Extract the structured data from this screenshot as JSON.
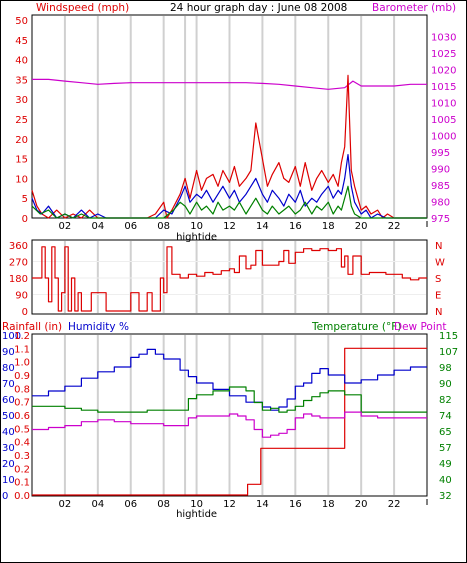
{
  "title": "24 hour graph day : June 08 2008",
  "colors": {
    "red": "#dd0000",
    "blue": "#0000cc",
    "green": "#008000",
    "magenta": "#cc00cc",
    "grid": "#d0d0d0",
    "frame": "#000000"
  },
  "chart_data": [
    {
      "type": "line",
      "panel": "wind-barometer",
      "left_axis_label": "Windspeed (mph)",
      "right_axis_label": "Barometer (mb)",
      "ylim": [
        0,
        50
      ],
      "left_ticks": [
        "0",
        "5",
        "10",
        "15",
        "20",
        "25",
        "30",
        "35",
        "40",
        "45",
        "50"
      ],
      "y2lim": [
        975,
        1035
      ],
      "right_ticks": [
        "975",
        "980",
        "985",
        "990",
        "995",
        "1000",
        "1005",
        "1010",
        "1015",
        "1020",
        "1025",
        "1030"
      ],
      "xlim": [
        0,
        24
      ],
      "x_ticks": [
        "02",
        "04",
        "06",
        "08",
        "10",
        "12",
        "14",
        "16",
        "18",
        "20",
        "22"
      ],
      "marker_label": "hightide",
      "marker_hour": 9.3,
      "grid": true,
      "series": [
        {
          "axis": "right",
          "color": "magenta",
          "x": [
            0,
            1,
            2,
            3,
            4,
            5,
            6,
            7,
            8,
            9,
            10,
            11,
            12,
            13,
            14,
            15,
            16,
            17,
            18,
            19,
            19.5,
            20,
            21,
            22,
            23,
            24
          ],
          "values": [
            1017,
            1017,
            1016.5,
            1016,
            1015.5,
            1015.8,
            1016,
            1016,
            1016,
            1016,
            1016,
            1016,
            1016,
            1016,
            1015.8,
            1015.5,
            1015,
            1014.5,
            1014,
            1014.5,
            1016.5,
            1015,
            1015,
            1015,
            1015.5,
            1015.5
          ]
        },
        {
          "axis": "left",
          "color": "red",
          "x": [
            0,
            0.3,
            0.6,
            1,
            1.5,
            2,
            2.5,
            3,
            3.5,
            4,
            4.5,
            5,
            5.5,
            6,
            6.5,
            7,
            7.5,
            8,
            8.2,
            8.5,
            9,
            9.3,
            9.6,
            10,
            10.3,
            10.6,
            11,
            11.3,
            11.6,
            12,
            12.3,
            12.6,
            13,
            13.3,
            13.6,
            14,
            14.3,
            14.6,
            15,
            15.3,
            15.6,
            16,
            16.3,
            16.6,
            17,
            17.3,
            17.6,
            18,
            18.3,
            18.6,
            18.8,
            19,
            19.2,
            19.4,
            19.6,
            20,
            20.3,
            20.6,
            21,
            21.3,
            21.6,
            22,
            22.5,
            23,
            23.5,
            24
          ],
          "values": [
            7,
            3,
            1,
            0,
            2,
            0,
            1,
            0,
            2,
            0,
            0,
            0,
            0,
            0,
            0,
            0,
            1,
            4,
            0,
            2,
            6,
            10,
            5,
            12,
            7,
            10,
            11,
            8,
            12,
            9,
            13,
            8,
            10,
            12,
            24,
            15,
            8,
            11,
            14,
            10,
            9,
            13,
            8,
            14,
            7,
            10,
            12,
            9,
            11,
            8,
            14,
            18,
            36,
            12,
            8,
            2,
            3,
            1,
            2,
            0,
            1,
            0,
            0,
            0,
            0,
            0
          ]
        },
        {
          "axis": "left",
          "color": "blue",
          "x": [
            0,
            0.3,
            0.6,
            1,
            1.5,
            2,
            2.5,
            3,
            3.5,
            4,
            4.5,
            5,
            5.5,
            6,
            6.5,
            7,
            7.5,
            8,
            8.5,
            9,
            9.3,
            9.6,
            10,
            10.3,
            10.6,
            11,
            11.3,
            11.6,
            12,
            12.3,
            12.6,
            13,
            13.3,
            13.6,
            14,
            14.3,
            14.6,
            15,
            15.3,
            15.6,
            16,
            16.3,
            16.6,
            17,
            17.3,
            17.6,
            18,
            18.3,
            18.6,
            18.8,
            19,
            19.2,
            19.4,
            19.6,
            20,
            20.3,
            20.6,
            21,
            21.5,
            22,
            23,
            24
          ],
          "values": [
            5,
            2,
            1,
            3,
            0,
            1,
            0,
            2,
            0,
            1,
            0,
            0,
            0,
            0,
            0,
            0,
            0,
            2,
            1,
            5,
            8,
            4,
            6,
            5,
            7,
            4,
            6,
            8,
            5,
            7,
            4,
            6,
            8,
            10,
            6,
            4,
            7,
            5,
            3,
            6,
            4,
            7,
            3,
            5,
            4,
            6,
            8,
            5,
            7,
            6,
            10,
            16,
            8,
            4,
            1,
            2,
            0,
            1,
            0,
            0,
            0,
            0
          ]
        },
        {
          "axis": "left",
          "color": "green",
          "x": [
            0,
            0.5,
            1,
            1.5,
            2,
            2.5,
            3,
            3.5,
            4,
            5,
            6,
            7,
            8,
            8.3,
            8.6,
            9,
            9.3,
            9.6,
            10,
            10.3,
            10.6,
            11,
            11.3,
            11.6,
            12,
            12.3,
            12.6,
            13,
            13.3,
            13.6,
            14,
            14.3,
            14.6,
            15,
            15.3,
            15.6,
            16,
            16.3,
            16.6,
            17,
            17.3,
            17.6,
            18,
            18.3,
            18.6,
            18.8,
            19,
            19.2,
            19.4,
            19.6,
            20,
            20.5,
            21,
            22,
            23,
            24
          ],
          "values": [
            3,
            1,
            2,
            0,
            1,
            0,
            1,
            0,
            0,
            0,
            0,
            0,
            0,
            1,
            2,
            4,
            3,
            1,
            4,
            2,
            3,
            1,
            4,
            2,
            3,
            2,
            4,
            1,
            3,
            5,
            2,
            1,
            3,
            1,
            2,
            3,
            1,
            2,
            4,
            1,
            3,
            2,
            4,
            1,
            3,
            2,
            5,
            8,
            3,
            1,
            0,
            0,
            0,
            0,
            0,
            0
          ]
        }
      ]
    },
    {
      "type": "line",
      "panel": "wind-direction",
      "ylim": [
        0,
        360
      ],
      "left_ticks": [
        "0",
        "90",
        "180",
        "270",
        "360"
      ],
      "right_ticks": [
        "N",
        "E",
        "S",
        "W",
        "N"
      ],
      "xlim": [
        0,
        24
      ],
      "grid": true,
      "series": [
        {
          "axis": "left",
          "color": "red",
          "x": [
            0,
            0.2,
            0.4,
            0.6,
            0.8,
            1,
            1.2,
            1.4,
            1.6,
            1.8,
            2,
            2.2,
            2.4,
            2.6,
            2.8,
            3,
            3.3,
            3.6,
            4,
            4.5,
            5,
            5.5,
            6,
            6.5,
            7,
            7.3,
            7.6,
            7.8,
            8,
            8.2,
            8.5,
            9,
            9.5,
            10,
            10.5,
            11,
            11.5,
            12,
            12.3,
            12.6,
            13,
            13.3,
            13.6,
            14,
            14.5,
            15,
            15.3,
            15.6,
            16,
            16.5,
            17,
            17.5,
            18,
            18.5,
            18.8,
            19,
            19.2,
            19.5,
            20,
            20.5,
            21,
            21.5,
            22,
            22.5,
            23,
            23.5,
            24
          ],
          "values": [
            180,
            180,
            180,
            350,
            180,
            50,
            350,
            180,
            0,
            100,
            350,
            0,
            180,
            0,
            100,
            0,
            0,
            100,
            100,
            0,
            0,
            0,
            100,
            0,
            100,
            0,
            0,
            180,
            100,
            350,
            200,
            180,
            200,
            190,
            210,
            200,
            220,
            230,
            210,
            300,
            230,
            250,
            330,
            250,
            250,
            270,
            330,
            260,
            320,
            340,
            330,
            340,
            330,
            340,
            240,
            300,
            200,
            300,
            200,
            210,
            210,
            200,
            200,
            180,
            170,
            180,
            180
          ]
        }
      ]
    },
    {
      "type": "line",
      "panel": "rain-humidity-temperature",
      "left_axis_label": "Rainfall (in)",
      "left_axis_label2": "Humidity %",
      "right_axis_label": "Temperature (°F)",
      "right_axis_label2": "Dew Point",
      "rain_ticks": [
        "0.0",
        "0.1",
        "0.2",
        "0.3",
        "0.4",
        "0.5",
        "0.6",
        "0.7",
        "0.8",
        "0.9",
        "1.0",
        "1.1",
        "1.2"
      ],
      "humidity_ticks": [
        "0",
        "10",
        "20",
        "30",
        "40",
        "50",
        "60",
        "70",
        "80",
        "90",
        "100"
      ],
      "right_ticks": [
        "32",
        "40",
        "49",
        "57",
        "65",
        "74",
        "82",
        "90",
        "98",
        "107",
        "115"
      ],
      "ylim": [
        0,
        100
      ],
      "y2lim": [
        32,
        115
      ],
      "y3lim": [
        0,
        1.2
      ],
      "xlim": [
        0,
        24
      ],
      "x_ticks": [
        "02",
        "04",
        "06",
        "08",
        "10",
        "12",
        "14",
        "16",
        "18",
        "20",
        "22"
      ],
      "marker_label": "hightide",
      "marker_hour": 9.3,
      "grid": true,
      "series": [
        {
          "axis": "rain",
          "color": "red",
          "x": [
            0,
            13.1,
            13.1,
            13.9,
            13.9,
            19,
            19,
            24
          ],
          "values": [
            0,
            0,
            0.08,
            0.08,
            0.35,
            0.35,
            1.1,
            1.1
          ]
        },
        {
          "axis": "humidity",
          "color": "blue",
          "x": [
            0,
            1,
            2,
            3,
            4,
            5,
            6,
            6.5,
            7,
            7.5,
            8,
            9,
            9.5,
            10,
            11,
            12,
            13,
            14,
            14.5,
            15,
            15.5,
            16,
            16.5,
            17,
            17.5,
            18,
            19,
            20,
            21,
            22,
            23,
            24
          ],
          "values": [
            62,
            65,
            68,
            73,
            77,
            80,
            86,
            88,
            91,
            88,
            85,
            78,
            74,
            70,
            66,
            62,
            58,
            55,
            53,
            55,
            60,
            68,
            70,
            76,
            79,
            75,
            70,
            72,
            75,
            78,
            80,
            80
          ]
        },
        {
          "axis": "temp",
          "color": "green",
          "x": [
            0,
            1,
            2,
            3,
            4,
            5,
            6,
            7,
            8,
            9,
            9.5,
            10,
            11,
            12,
            12.5,
            13,
            13.5,
            14,
            14.5,
            15,
            15.5,
            16,
            16.5,
            17,
            17.5,
            18,
            19,
            20,
            21,
            22,
            23,
            24
          ],
          "values": [
            78,
            78,
            77,
            76,
            75,
            75,
            75,
            76,
            76,
            76,
            82,
            84,
            86,
            88,
            88,
            86,
            80,
            76,
            77,
            75,
            76,
            78,
            81,
            83,
            85,
            86,
            84,
            75,
            75,
            75,
            75,
            75
          ]
        },
        {
          "axis": "temp",
          "color": "magenta",
          "x": [
            0,
            1,
            2,
            3,
            4,
            5,
            6,
            7,
            8,
            9,
            9.5,
            10,
            11,
            12,
            12.5,
            13,
            13.5,
            14,
            14.5,
            15,
            15.5,
            16,
            16.5,
            17,
            17.5,
            18,
            19,
            20,
            21,
            22,
            23,
            24
          ],
          "values": [
            66,
            67,
            68,
            70,
            71,
            70,
            69,
            69,
            68,
            68,
            72,
            73,
            73,
            74,
            73,
            71,
            66,
            62,
            63,
            64,
            66,
            72,
            74,
            73,
            72,
            72,
            75,
            73,
            72,
            72,
            72,
            72
          ]
        }
      ]
    }
  ]
}
